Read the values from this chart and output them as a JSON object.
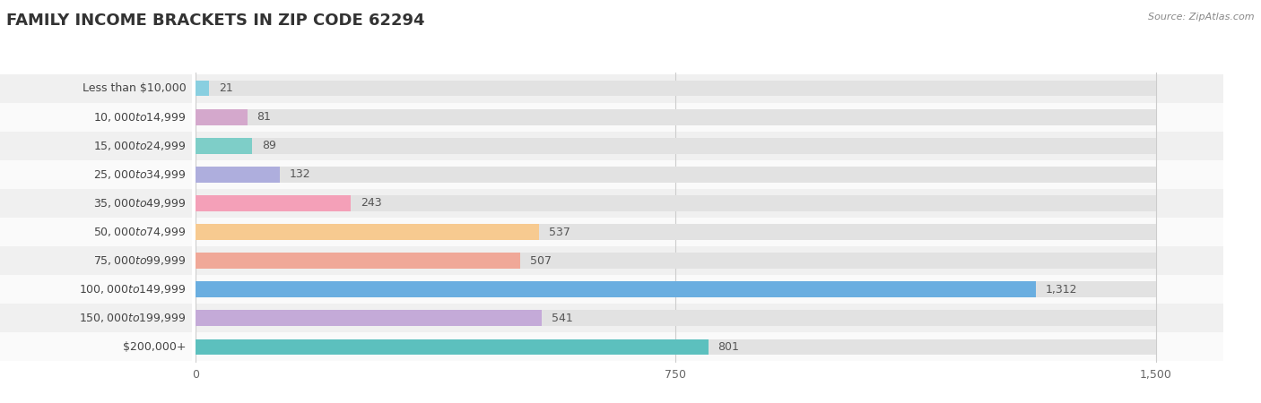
{
  "title": "FAMILY INCOME BRACKETS IN ZIP CODE 62294",
  "source": "Source: ZipAtlas.com",
  "categories": [
    "Less than $10,000",
    "$10,000 to $14,999",
    "$15,000 to $24,999",
    "$25,000 to $34,999",
    "$35,000 to $49,999",
    "$50,000 to $74,999",
    "$75,000 to $99,999",
    "$100,000 to $149,999",
    "$150,000 to $199,999",
    "$200,000+"
  ],
  "values": [
    21,
    81,
    89,
    132,
    243,
    537,
    507,
    1312,
    541,
    801
  ],
  "bar_colors": [
    "#89cfe0",
    "#d4a8cc",
    "#7ecec8",
    "#aeaedd",
    "#f4a0b8",
    "#f7ca90",
    "#f0a898",
    "#6aaee0",
    "#c4aad8",
    "#5cc0be"
  ],
  "xlim": [
    0,
    1500
  ],
  "xticks": [
    0,
    750,
    1500
  ],
  "bg_color": "#ffffff",
  "row_colors": [
    "#f0f0f0",
    "#fafafa"
  ],
  "bar_bg_color": "#e2e2e2",
  "title_fontsize": 13,
  "label_fontsize": 9,
  "value_fontsize": 9
}
